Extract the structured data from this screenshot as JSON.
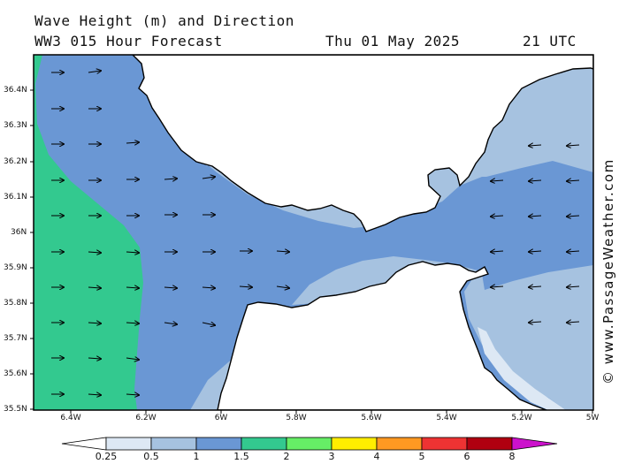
{
  "header": {
    "line1": "Wave Height (m) and Direction",
    "line2": "WW3 015 Hour Forecast",
    "date": "Thu 01 May 2025",
    "time": "21 UTC"
  },
  "credit": "© www.PassageWeather.com",
  "lat_labels": [
    "36.4N",
    "36.3N",
    "36.2N",
    "36.1N",
    "36N",
    "35.9N",
    "35.8N",
    "35.7N",
    "35.6N",
    "35.5N"
  ],
  "lon_labels": [
    "6.4W",
    "6.2W",
    "6W",
    "5.8W",
    "5.6W",
    "5.4W",
    "5.2W",
    "5W"
  ],
  "legend": {
    "labels": [
      "0.25",
      "0.5",
      "1",
      "1.5",
      "2",
      "3",
      "4",
      "5",
      "6",
      "8"
    ],
    "colors": [
      "#ffffff",
      "#dde8f4",
      "#a6c2e0",
      "#6a97d4",
      "#33c98f",
      "#66ee66",
      "#ffee00",
      "#ff9922",
      "#ee3333",
      "#b00010",
      "#cc11cc"
    ]
  },
  "wave_colors": {
    "band_1_1_5": "#6a97d4",
    "band_0_5_1": "#a6c2e0",
    "band_0_25_0_5": "#dde8f4",
    "band_1_5_2": "#33c98f",
    "land": "#ffffff",
    "coast": "#000000"
  }
}
